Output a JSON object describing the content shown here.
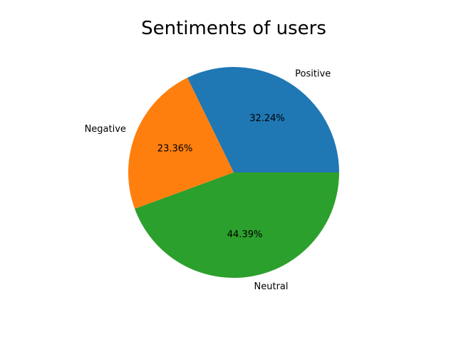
{
  "chart_data": {
    "type": "pie",
    "title": "Sentiments of users",
    "slices": [
      {
        "label": "Positive",
        "value": 32.24,
        "pct_label": "32.24%",
        "color": "#1f77b4"
      },
      {
        "label": "Negative",
        "value": 23.36,
        "pct_label": "23.36%",
        "color": "#ff7f0e"
      },
      {
        "label": "Neutral",
        "value": 44.39,
        "pct_label": "44.39%",
        "color": "#2ca02c"
      }
    ],
    "start_angle_deg": 0,
    "direction": "counterclockwise"
  }
}
